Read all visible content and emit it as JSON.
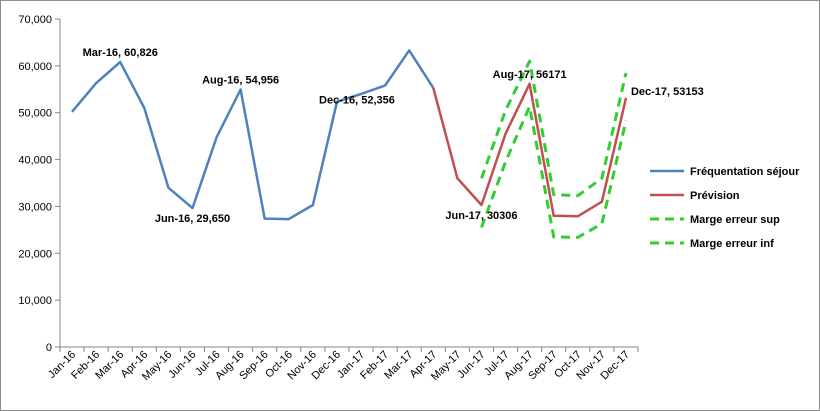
{
  "chart_data": {
    "type": "line",
    "categories": [
      "Jan-16",
      "Feb-16",
      "Mar-16",
      "Apr-16",
      "May-16",
      "Jun-16",
      "Jul-16",
      "Aug-16",
      "Sep-16",
      "Oct-16",
      "Nov-16",
      "Dec-16",
      "Jan-17",
      "Feb-17",
      "Mar-17",
      "Apr-17",
      "May-17",
      "Jun-17",
      "Jul-17",
      "Aug-17",
      "Sep-17",
      "Oct-17",
      "Nov-17",
      "Dec-17"
    ],
    "ylim": [
      0,
      70000
    ],
    "yticks": [
      0,
      10000,
      20000,
      30000,
      40000,
      50000,
      60000,
      70000
    ],
    "ytick_labels": [
      "0",
      "10,000",
      "20,000",
      "30,000",
      "40,000",
      "50,000",
      "60,000",
      "70,000"
    ],
    "grid": false,
    "legend_position": "right",
    "series": [
      {
        "name": "Fréquentation séjour",
        "color": "#4f81bd",
        "dash": "solid",
        "values": [
          50200,
          56300,
          60826,
          51000,
          34000,
          29650,
          44700,
          54956,
          27400,
          27300,
          30300,
          52356,
          54000,
          55800,
          63300,
          55300,
          null,
          null,
          null,
          null,
          null,
          null,
          null,
          null
        ]
      },
      {
        "name": "Prévision",
        "color": "#c0504d",
        "dash": "solid",
        "values": [
          null,
          null,
          null,
          null,
          null,
          null,
          null,
          null,
          null,
          null,
          null,
          null,
          null,
          null,
          null,
          55300,
          36000,
          30306,
          45500,
          56171,
          28000,
          27900,
          31000,
          53153
        ]
      },
      {
        "name": "Marge erreur sup",
        "color": "#33cc33",
        "dash": "dashed",
        "values": [
          null,
          null,
          null,
          null,
          null,
          null,
          null,
          null,
          null,
          null,
          null,
          null,
          null,
          null,
          null,
          null,
          null,
          36000,
          50500,
          61000,
          32500,
          32300,
          36000,
          58500
        ]
      },
      {
        "name": "Marge erreur inf",
        "color": "#33cc33",
        "dash": "dashed",
        "values": [
          null,
          null,
          null,
          null,
          null,
          null,
          null,
          null,
          null,
          null,
          null,
          null,
          null,
          null,
          null,
          null,
          null,
          25500,
          39500,
          51300,
          23500,
          23400,
          26300,
          48300
        ]
      }
    ],
    "annotations": [
      {
        "text": "Mar-16, 60,826",
        "category": "Mar-16",
        "value": 60826,
        "anchor": "above"
      },
      {
        "text": "Jun-16, 29,650",
        "category": "Jun-16",
        "value": 29650,
        "anchor": "below"
      },
      {
        "text": "Aug-16, 54,956",
        "category": "Aug-16",
        "value": 54956,
        "anchor": "above"
      },
      {
        "text": "Dec-16, 52,356",
        "category": "Dec-16",
        "value": 52356,
        "anchor": "left"
      },
      {
        "text": "Jun-17, 30306",
        "category": "Jun-17",
        "value": 30306,
        "anchor": "below"
      },
      {
        "text": "Aug-17, 56171",
        "category": "Aug-17",
        "value": 56171,
        "anchor": "above"
      },
      {
        "text": "Dec-17, 53153",
        "category": "Dec-17",
        "value": 53153,
        "anchor": "right"
      }
    ]
  }
}
